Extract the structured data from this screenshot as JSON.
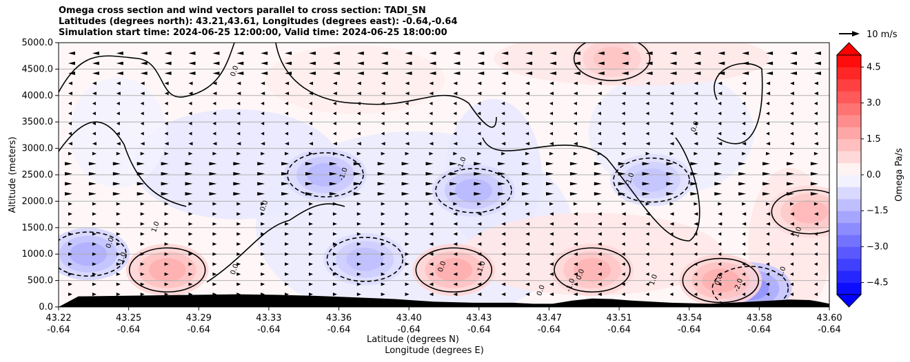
{
  "title_lines": [
    "Omega cross section and wind vectors parallel to cross section: TADI_SN",
    "Latitudes (degrees north): 43.21,43.61, Longitudes (degrees east): -0.64,-0.64",
    "Simulation start time: 2024-06-25 12:00:00, Valid time: 2024-06-25 18:00:00"
  ],
  "chart_data": {
    "type": "heatmap",
    "subtype": "filled contour cross section with wind vectors",
    "ylabel": "Altitude (meters)",
    "xlabel": "Latitude (degrees N)",
    "xlabel2": "Longitude (degrees E)",
    "ylim": [
      0,
      5000
    ],
    "y_ticks": [
      "0.0",
      "500.0",
      "1000.0",
      "1500.0",
      "2000.0",
      "2500.0",
      "3000.0",
      "3500.0",
      "4000.0",
      "4500.0",
      "5000.0"
    ],
    "y_tick_values": [
      0,
      500,
      1000,
      1500,
      2000,
      2500,
      3000,
      3500,
      4000,
      4500,
      5000
    ],
    "x_lat_ticks": [
      "43.22",
      "43.25",
      "43.29",
      "43.33",
      "43.36",
      "43.40",
      "43.43",
      "43.47",
      "43.51",
      "43.54",
      "43.58",
      "43.60"
    ],
    "x_lon_ticks": [
      "-0.64",
      "-0.64",
      "-0.64",
      "-0.64",
      "-0.64",
      "-0.64",
      "-0.64",
      "-0.64",
      "-0.64",
      "-0.64",
      "-0.64",
      "-0.64"
    ],
    "grid": "horizontal",
    "colorbar": {
      "label": "Omega Pa/s",
      "range": [
        -5,
        5
      ],
      "ticks": [
        "4.5",
        "3.0",
        "1.5",
        "0.0",
        "−1.5",
        "−3.0",
        "−4.5"
      ],
      "tick_values": [
        4.5,
        3.0,
        1.5,
        0.0,
        -1.5,
        -3.0,
        -4.5
      ],
      "cmap": "bwr",
      "extend": "both"
    },
    "quiver_key": "10 m/s",
    "contour_labels": [
      "0.0",
      "-1.0",
      "1.0",
      "-2.0"
    ],
    "features": [
      {
        "sign": "negative",
        "lat": 43.345,
        "alt": 2500,
        "value": -1.3
      },
      {
        "sign": "negative",
        "lat": 43.365,
        "alt": 900,
        "value": -1.2
      },
      {
        "sign": "negative",
        "lat": 43.225,
        "alt": 1000,
        "value": -1.5
      },
      {
        "sign": "negative",
        "lat": 43.42,
        "alt": 2200,
        "value": -1.3
      },
      {
        "sign": "negative",
        "lat": 43.51,
        "alt": 2400,
        "value": -1.1
      },
      {
        "sign": "negative",
        "lat": 43.56,
        "alt": 350,
        "value": -2.0
      },
      {
        "sign": "positive",
        "lat": 43.265,
        "alt": 700,
        "value": 1.5
      },
      {
        "sign": "positive",
        "lat": 43.41,
        "alt": 700,
        "value": 1.5
      },
      {
        "sign": "positive",
        "lat": 43.48,
        "alt": 700,
        "value": 1.4
      },
      {
        "sign": "positive",
        "lat": 43.545,
        "alt": 500,
        "value": 1.5
      },
      {
        "sign": "positive",
        "lat": 43.59,
        "alt": 1800,
        "value": 1.3
      },
      {
        "sign": "positive",
        "lat": 43.49,
        "alt": 4700,
        "value": 1.1
      }
    ],
    "terrain_top": [
      200,
      210,
      220,
      230,
      240,
      230,
      210,
      180,
      150,
      100,
      80,
      80,
      60,
      60,
      120,
      160,
      150,
      120,
      80,
      60,
      100,
      140,
      130,
      100,
      60
    ],
    "terrain_lat": [
      43.22,
      43.24,
      43.26,
      43.28,
      43.3,
      43.32,
      43.34,
      43.36,
      43.38,
      43.4,
      43.42,
      43.44,
      43.45,
      43.46,
      43.47,
      43.48,
      43.49,
      43.5,
      43.52,
      43.54,
      43.56,
      43.58,
      43.59,
      43.595,
      43.6
    ]
  }
}
